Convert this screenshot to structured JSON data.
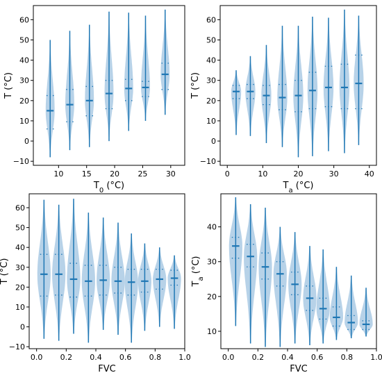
{
  "colors": {
    "violin_fill": "#9fc3e0",
    "violin_line": "#1f77b4",
    "axis": "#000000",
    "background": "#ffffff"
  },
  "chart_data": [
    {
      "type": "violin",
      "title": "",
      "xlabel": "T₀ (°C)",
      "ylabel": "T (°C)",
      "xlim": [
        5.5,
        32.5
      ],
      "ylim": [
        -12,
        67
      ],
      "xticks": [
        10,
        15,
        20,
        25,
        30
      ],
      "xtick_labels": [
        "10",
        "15",
        "20",
        "25",
        "30"
      ],
      "yticks": [
        -10,
        0,
        10,
        20,
        30,
        40,
        50,
        60
      ],
      "ytick_labels": [
        "−10",
        "0",
        "10",
        "20",
        "30",
        "40",
        "50",
        "60"
      ],
      "grid": false,
      "violins": [
        {
          "x": 8.5,
          "min": -8,
          "max": 50,
          "median": 15,
          "q1": 6,
          "q3": 22.5,
          "width": 1.6
        },
        {
          "x": 12,
          "min": -4.5,
          "max": 54.5,
          "median": 18,
          "q1": 9.5,
          "q3": 25.5,
          "width": 1.6
        },
        {
          "x": 15.5,
          "min": -3,
          "max": 57.5,
          "median": 20,
          "q1": 12.5,
          "q3": 27,
          "width": 1.6
        },
        {
          "x": 19,
          "min": 0,
          "max": 64,
          "median": 23.5,
          "q1": 16,
          "q3": 30,
          "width": 1.6
        },
        {
          "x": 22.5,
          "min": 5,
          "max": 63.5,
          "median": 26,
          "q1": 20,
          "q3": 30.5,
          "width": 1.6
        },
        {
          "x": 25.5,
          "min": 10,
          "max": 62,
          "median": 26.5,
          "q1": 22,
          "q3": 29.5,
          "width": 1.6
        },
        {
          "x": 29,
          "min": 13,
          "max": 65,
          "median": 33,
          "q1": 25.5,
          "q3": 38.5,
          "width": 1.6
        }
      ]
    },
    {
      "type": "violin",
      "title": "",
      "xlabel": "Tₐ (°C)",
      "ylabel": "T (°C)",
      "xlim": [
        -2,
        42
      ],
      "ylim": [
        -12,
        67
      ],
      "xticks": [
        0,
        10,
        20,
        30,
        40
      ],
      "xtick_labels": [
        "0",
        "10",
        "20",
        "30",
        "40"
      ],
      "yticks": [
        -10,
        0,
        10,
        20,
        30,
        40,
        50,
        60
      ],
      "ytick_labels": [
        "−10",
        "0",
        "10",
        "20",
        "30",
        "40",
        "50",
        "60"
      ],
      "grid": false,
      "violins": [
        {
          "x": 2.5,
          "min": 3,
          "max": 35,
          "median": 24.5,
          "q1": 21,
          "q3": 27.5,
          "width": 2.8
        },
        {
          "x": 6.5,
          "min": 2.5,
          "max": 42,
          "median": 24.5,
          "q1": 21,
          "q3": 28,
          "width": 2.8
        },
        {
          "x": 11,
          "min": -1,
          "max": 47.5,
          "median": 22.5,
          "q1": 18,
          "q3": 27.5,
          "width": 2.8
        },
        {
          "x": 15.5,
          "min": -3,
          "max": 57,
          "median": 21.5,
          "q1": 15.5,
          "q3": 28,
          "width": 2.8
        },
        {
          "x": 20,
          "min": -8,
          "max": 57,
          "median": 22.5,
          "q1": 14.5,
          "q3": 30,
          "width": 2.8
        },
        {
          "x": 24,
          "min": -7.5,
          "max": 61.5,
          "median": 25,
          "q1": 16,
          "q3": 34,
          "width": 2.8
        },
        {
          "x": 28.5,
          "min": -5,
          "max": 61,
          "median": 26.5,
          "q1": 17,
          "q3": 37,
          "width": 2.8
        },
        {
          "x": 33,
          "min": -6,
          "max": 65,
          "median": 26.5,
          "q1": 16,
          "q3": 38,
          "width": 2.8
        },
        {
          "x": 37,
          "min": -2,
          "max": 62,
          "median": 28.5,
          "q1": 16,
          "q3": 42.5,
          "width": 2.8
        }
      ]
    },
    {
      "type": "violin",
      "title": "",
      "xlabel": "FVC",
      "ylabel": "T (°C)",
      "xlim": [
        -0.05,
        1.0
      ],
      "ylim": [
        -11,
        67
      ],
      "xticks": [
        0.0,
        0.2,
        0.4,
        0.6,
        0.8,
        1.0
      ],
      "xtick_labels": [
        "0.0",
        "0.2",
        "0.4",
        "0.6",
        "0.8",
        "1.0"
      ],
      "yticks": [
        -10,
        0,
        10,
        20,
        30,
        40,
        50,
        60
      ],
      "ytick_labels": [
        "−10",
        "0",
        "10",
        "20",
        "30",
        "40",
        "50",
        "60"
      ],
      "grid": false,
      "violins": [
        {
          "x": 0.05,
          "min": -6,
          "max": 64,
          "median": 26.5,
          "q1": 15.5,
          "q3": 36.5,
          "width": 0.09
        },
        {
          "x": 0.15,
          "min": -7,
          "max": 61.5,
          "median": 26.5,
          "q1": 16,
          "q3": 36.5,
          "width": 0.09
        },
        {
          "x": 0.25,
          "min": -3.5,
          "max": 64.5,
          "median": 24,
          "q1": 15,
          "q3": 32,
          "width": 0.09
        },
        {
          "x": 0.35,
          "min": -8,
          "max": 57.5,
          "median": 23,
          "q1": 15.5,
          "q3": 31,
          "width": 0.09
        },
        {
          "x": 0.45,
          "min": -1.5,
          "max": 55,
          "median": 23.5,
          "q1": 16,
          "q3": 31,
          "width": 0.09
        },
        {
          "x": 0.55,
          "min": -4,
          "max": 52.5,
          "median": 23,
          "q1": 17,
          "q3": 30,
          "width": 0.09
        },
        {
          "x": 0.64,
          "min": -8,
          "max": 47,
          "median": 22.5,
          "q1": 16,
          "q3": 29,
          "width": 0.09
        },
        {
          "x": 0.73,
          "min": -2,
          "max": 42,
          "median": 23,
          "q1": 17.5,
          "q3": 29,
          "width": 0.09
        },
        {
          "x": 0.83,
          "min": 0,
          "max": 40,
          "median": 24,
          "q1": 19,
          "q3": 29,
          "width": 0.09
        },
        {
          "x": 0.93,
          "min": -1,
          "max": 36,
          "median": 24.5,
          "q1": 21,
          "q3": 28.5,
          "width": 0.09
        }
      ]
    },
    {
      "type": "violin",
      "title": "",
      "xlabel": "FVC",
      "ylabel": "Tₐ (°C)",
      "xlim": [
        -0.05,
        1.0
      ],
      "ylim": [
        5,
        49.5
      ],
      "xticks": [
        0.0,
        0.2,
        0.4,
        0.6,
        0.8,
        1.0
      ],
      "xtick_labels": [
        "0.0",
        "0.2",
        "0.4",
        "0.6",
        "0.8",
        "1.0"
      ],
      "yticks": [
        10,
        20,
        30,
        40
      ],
      "ytick_labels": [
        "10",
        "20",
        "30",
        "40"
      ],
      "grid": false,
      "violins": [
        {
          "x": 0.05,
          "min": 11.5,
          "max": 48.5,
          "median": 34.5,
          "q1": 31,
          "q3": 37,
          "width": 0.09
        },
        {
          "x": 0.15,
          "min": 6.5,
          "max": 46.5,
          "median": 31.5,
          "q1": 28.5,
          "q3": 35,
          "width": 0.09
        },
        {
          "x": 0.25,
          "min": 5.5,
          "max": 45.5,
          "median": 28.5,
          "q1": 25,
          "q3": 32.5,
          "width": 0.09
        },
        {
          "x": 0.35,
          "min": 5.5,
          "max": 40,
          "median": 26.5,
          "q1": 23,
          "q3": 30,
          "width": 0.09
        },
        {
          "x": 0.45,
          "min": 6.5,
          "max": 38.5,
          "median": 23.5,
          "q1": 20.5,
          "q3": 27,
          "width": 0.09
        },
        {
          "x": 0.55,
          "min": 6,
          "max": 34.5,
          "median": 19.5,
          "q1": 16,
          "q3": 23,
          "width": 0.09
        },
        {
          "x": 0.64,
          "min": 6.5,
          "max": 33.5,
          "median": 16.5,
          "q1": 13.5,
          "q3": 19.5,
          "width": 0.09
        },
        {
          "x": 0.73,
          "min": 7.5,
          "max": 28.5,
          "median": 14,
          "q1": 11.5,
          "q3": 17,
          "width": 0.09
        },
        {
          "x": 0.83,
          "min": 8,
          "max": 26,
          "median": 12.5,
          "q1": 10.5,
          "q3": 14.5,
          "width": 0.09
        },
        {
          "x": 0.93,
          "min": 8.5,
          "max": 22.5,
          "median": 12,
          "q1": 10.5,
          "q3": 13,
          "width": 0.09
        }
      ]
    }
  ]
}
